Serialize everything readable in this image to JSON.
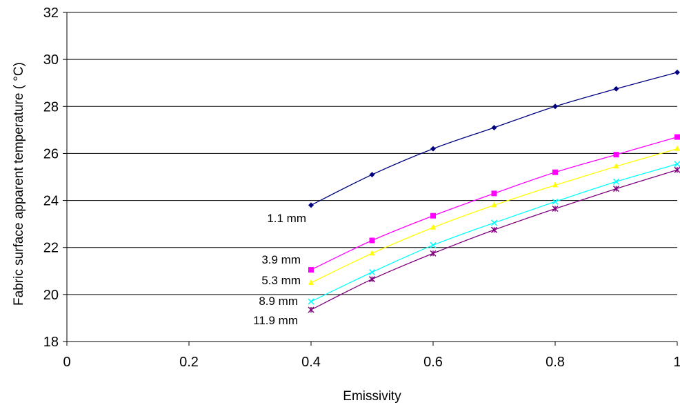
{
  "chart_data": {
    "type": "line",
    "title": "",
    "xlabel": "Emissivity",
    "ylabel": "Fabric surface apparent temperature ( °C)",
    "xlim": [
      0,
      1
    ],
    "ylim": [
      18,
      32
    ],
    "x_ticks": [
      "0",
      "0.2",
      "0.4",
      "0.6",
      "0.8",
      "1"
    ],
    "y_ticks": [
      "18",
      "20",
      "22",
      "24",
      "26",
      "28",
      "30",
      "32"
    ],
    "grid": "horizontal major gridlines",
    "legend": "none (series labelled inline at left end of each curve)",
    "x": [
      0.4,
      0.5,
      0.6,
      0.7,
      0.8,
      0.9,
      1.0
    ],
    "series": [
      {
        "name": "1.1 mm",
        "color": "#000080",
        "marker": "diamond",
        "values": [
          23.8,
          25.1,
          26.2,
          27.1,
          28.0,
          28.75,
          29.45
        ]
      },
      {
        "name": "3.9 mm",
        "color": "#ff00ff",
        "marker": "square",
        "values": [
          21.05,
          22.3,
          23.35,
          24.3,
          25.2,
          25.95,
          26.7
        ]
      },
      {
        "name": "5.3 mm",
        "color": "#ffff00",
        "marker": "triangle",
        "values": [
          20.5,
          21.75,
          22.85,
          23.8,
          24.65,
          25.45,
          26.2
        ]
      },
      {
        "name": "8.9 mm",
        "color": "#00ffff",
        "marker": "x",
        "values": [
          19.7,
          20.95,
          22.1,
          23.05,
          23.95,
          24.8,
          25.55
        ]
      },
      {
        "name": "11.9 mm",
        "color": "#800080",
        "marker": "star",
        "values": [
          19.35,
          20.65,
          21.75,
          22.75,
          23.65,
          24.5,
          25.3
        ]
      }
    ]
  }
}
